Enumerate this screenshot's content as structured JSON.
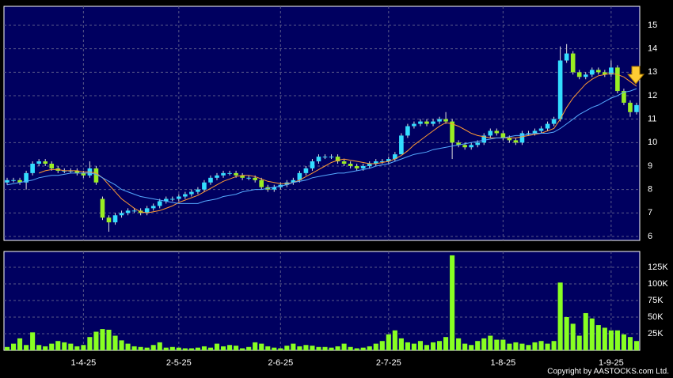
{
  "chart_data": [
    {
      "type": "candlestick",
      "open": [
        8.3,
        8.4,
        8.4,
        8.3,
        8.7,
        9.1,
        9.2,
        9.1,
        8.9,
        8.8,
        8.8,
        8.8,
        8.7,
        8.6,
        8.9,
        7.6,
        6.8,
        6.6,
        6.9,
        7.0,
        7.1,
        7.1,
        7.0,
        7.2,
        7.3,
        7.5,
        7.6,
        7.6,
        7.7,
        7.8,
        7.9,
        8.0,
        8.3,
        8.5,
        8.6,
        8.7,
        8.7,
        8.6,
        8.5,
        8.5,
        8.4,
        8.1,
        8.0,
        8.1,
        8.2,
        8.3,
        8.4,
        8.7,
        8.9,
        9.2,
        9.4,
        9.4,
        9.4,
        9.2,
        9.1,
        9.0,
        8.9,
        9.0,
        9.1,
        9.2,
        9.2,
        9.3,
        9.5,
        10.3,
        10.7,
        10.8,
        10.9,
        10.8,
        10.9,
        11.0,
        10.9,
        10.0,
        9.9,
        9.8,
        9.9,
        10.0,
        10.3,
        10.5,
        10.4,
        10.2,
        10.1,
        10.0,
        10.4,
        10.4,
        10.5,
        10.6,
        10.8,
        11.0,
        13.5,
        13.8,
        13.0,
        12.8,
        12.9,
        13.1,
        13.0,
        12.9,
        13.2,
        12.2,
        11.7,
        11.3
      ],
      "high": [
        8.5,
        8.5,
        8.5,
        8.8,
        9.2,
        9.3,
        9.3,
        9.2,
        9.0,
        8.9,
        8.9,
        8.9,
        8.8,
        9.2,
        9.0,
        7.7,
        6.9,
        7.0,
        7.1,
        7.2,
        7.2,
        7.2,
        7.3,
        7.4,
        7.6,
        7.7,
        7.7,
        7.8,
        7.9,
        8.0,
        8.1,
        8.4,
        8.6,
        8.7,
        8.8,
        8.8,
        8.8,
        8.7,
        8.6,
        8.6,
        8.5,
        8.2,
        8.2,
        8.3,
        8.4,
        8.5,
        8.8,
        9.0,
        9.3,
        9.5,
        9.5,
        9.5,
        9.5,
        9.3,
        9.2,
        9.1,
        9.1,
        9.2,
        9.3,
        9.3,
        9.4,
        9.6,
        10.4,
        10.8,
        10.9,
        11.0,
        11.0,
        11.0,
        11.1,
        11.3,
        11.0,
        10.1,
        10.0,
        10.0,
        10.1,
        10.4,
        10.6,
        10.6,
        10.5,
        10.3,
        10.2,
        10.5,
        10.5,
        10.6,
        10.7,
        10.9,
        11.1,
        14.1,
        14.2,
        13.9,
        13.1,
        13.0,
        13.2,
        13.2,
        13.1,
        13.5,
        13.3,
        12.3,
        11.8,
        11.7
      ],
      "low": [
        8.2,
        8.3,
        8.2,
        8.0,
        8.6,
        9.0,
        9.0,
        8.8,
        8.7,
        8.7,
        8.7,
        8.6,
        8.5,
        8.5,
        8.2,
        6.7,
        6.2,
        6.5,
        6.8,
        6.9,
        7.0,
        6.9,
        6.9,
        7.1,
        7.2,
        7.4,
        7.5,
        7.5,
        7.6,
        7.7,
        7.8,
        7.9,
        8.2,
        8.4,
        8.5,
        8.6,
        8.5,
        8.4,
        8.4,
        8.3,
        8.0,
        7.9,
        7.9,
        8.0,
        8.1,
        8.2,
        8.3,
        8.6,
        8.8,
        9.1,
        9.3,
        9.3,
        9.1,
        9.0,
        8.9,
        8.8,
        8.8,
        8.9,
        9.0,
        9.1,
        9.1,
        9.2,
        9.5,
        10.2,
        10.6,
        10.7,
        10.7,
        10.7,
        10.8,
        10.8,
        9.3,
        9.8,
        9.7,
        9.7,
        9.8,
        9.9,
        10.2,
        10.3,
        10.1,
        10.0,
        9.9,
        9.9,
        10.3,
        10.3,
        10.4,
        10.5,
        10.7,
        10.9,
        13.4,
        12.9,
        12.7,
        12.7,
        12.8,
        12.9,
        12.8,
        12.8,
        12.1,
        11.6,
        11.1,
        11.2
      ],
      "close": [
        8.4,
        8.4,
        8.3,
        8.7,
        9.1,
        9.2,
        9.1,
        8.9,
        8.8,
        8.8,
        8.8,
        8.7,
        8.6,
        8.9,
        8.3,
        6.8,
        6.6,
        6.9,
        7.0,
        7.1,
        7.1,
        7.0,
        7.2,
        7.3,
        7.5,
        7.6,
        7.6,
        7.7,
        7.8,
        7.9,
        8.0,
        8.3,
        8.5,
        8.6,
        8.7,
        8.7,
        8.6,
        8.5,
        8.5,
        8.4,
        8.1,
        8.0,
        8.1,
        8.2,
        8.3,
        8.4,
        8.7,
        8.9,
        9.2,
        9.4,
        9.4,
        9.4,
        9.2,
        9.1,
        9.0,
        8.9,
        9.0,
        9.1,
        9.2,
        9.2,
        9.3,
        9.5,
        10.3,
        10.7,
        10.8,
        10.9,
        10.8,
        10.9,
        11.0,
        10.9,
        10.0,
        9.9,
        9.8,
        9.9,
        10.0,
        10.3,
        10.5,
        10.4,
        10.2,
        10.1,
        10.0,
        10.4,
        10.4,
        10.5,
        10.6,
        10.8,
        11.0,
        13.5,
        13.8,
        13.0,
        12.8,
        12.9,
        13.1,
        13.0,
        12.9,
        13.2,
        12.2,
        11.7,
        11.3,
        11.6
      ],
      "up_color": "#33ddff",
      "down_color": "#99ee22",
      "series": [
        {
          "color": "#ff9933",
          "values": [
            null,
            null,
            null,
            null,
            null,
            8.7,
            8.8,
            8.85,
            8.85,
            8.8,
            8.8,
            8.8,
            8.75,
            8.75,
            8.7,
            8.5,
            8.2,
            7.9,
            7.6,
            7.4,
            7.2,
            7.05,
            7.0,
            7.05,
            7.1,
            7.2,
            7.3,
            7.45,
            7.55,
            7.65,
            7.75,
            7.9,
            8.05,
            8.2,
            8.35,
            8.45,
            8.55,
            8.6,
            8.6,
            8.55,
            8.45,
            8.35,
            8.3,
            8.25,
            8.25,
            8.3,
            8.4,
            8.55,
            8.7,
            8.85,
            9.0,
            9.15,
            9.25,
            9.3,
            9.25,
            9.2,
            9.15,
            9.1,
            9.1,
            9.15,
            9.2,
            9.3,
            9.45,
            9.65,
            9.9,
            10.1,
            10.3,
            10.5,
            10.7,
            10.85,
            10.8,
            10.7,
            10.55,
            10.4,
            10.3,
            10.25,
            10.2,
            10.2,
            10.2,
            10.2,
            10.2,
            10.25,
            10.3,
            10.35,
            10.4,
            10.5,
            10.6,
            11.0,
            11.5,
            11.9,
            12.2,
            12.5,
            12.7,
            12.85,
            12.9,
            12.95,
            12.9,
            12.8,
            12.6,
            12.4
          ]
        },
        {
          "color": "#55aaff",
          "values": [
            8.2,
            8.25,
            8.3,
            8.35,
            8.4,
            8.5,
            8.55,
            8.6,
            8.6,
            8.65,
            8.7,
            8.7,
            8.7,
            8.7,
            8.65,
            8.5,
            8.35,
            8.2,
            8.0,
            7.9,
            7.8,
            7.7,
            7.65,
            7.6,
            7.55,
            7.5,
            7.45,
            7.4,
            7.4,
            7.4,
            7.4,
            7.5,
            7.55,
            7.6,
            7.7,
            7.75,
            7.8,
            7.9,
            7.95,
            8.0,
            8.0,
            8.05,
            8.1,
            8.15,
            8.2,
            8.3,
            8.35,
            8.4,
            8.5,
            8.55,
            8.6,
            8.65,
            8.7,
            8.7,
            8.75,
            8.8,
            8.85,
            8.9,
            9.0,
            9.05,
            9.1,
            9.2,
            9.3,
            9.4,
            9.5,
            9.55,
            9.6,
            9.7,
            9.75,
            9.8,
            9.85,
            9.9,
            9.95,
            10.0,
            10.05,
            10.1,
            10.15,
            10.2,
            10.2,
            10.25,
            10.3,
            10.3,
            10.35,
            10.4,
            10.4,
            10.4,
            10.45,
            10.6,
            10.8,
            11.0,
            11.2,
            11.35,
            11.5,
            11.6,
            11.75,
            11.9,
            12.0,
            12.15,
            12.2,
            12.3
          ]
        }
      ],
      "ylim": [
        5.83,
        15.81
      ],
      "yticks": [
        6,
        7,
        8,
        9,
        10,
        11,
        12,
        13,
        14,
        15
      ],
      "grid": true
    },
    {
      "type": "bar",
      "color": "#88ff22",
      "categories": [
        null,
        null,
        null,
        null,
        null,
        null,
        null,
        null,
        null,
        null,
        null,
        null,
        "1-4-25",
        null,
        null,
        null,
        null,
        null,
        null,
        null,
        null,
        null,
        null,
        null,
        null,
        null,
        null,
        "2-5-25",
        null,
        null,
        null,
        null,
        null,
        null,
        null,
        null,
        null,
        null,
        null,
        null,
        null,
        null,
        null,
        "2-6-25",
        null,
        null,
        null,
        null,
        null,
        null,
        null,
        null,
        null,
        null,
        null,
        null,
        null,
        null,
        null,
        null,
        "2-7-25",
        null,
        null,
        null,
        null,
        null,
        null,
        null,
        null,
        null,
        null,
        null,
        null,
        null,
        null,
        null,
        null,
        null,
        "1-8-25",
        null,
        null,
        null,
        null,
        null,
        null,
        null,
        null,
        null,
        null,
        null,
        null,
        null,
        null,
        null,
        null,
        "1-9-25",
        null,
        null,
        null,
        null
      ],
      "values": [
        5000,
        10000,
        18000,
        8000,
        27000,
        8000,
        6000,
        10000,
        14000,
        12000,
        10000,
        6000,
        8000,
        20000,
        28000,
        32000,
        31000,
        22000,
        15000,
        10000,
        6000,
        5000,
        4000,
        8000,
        12000,
        4000,
        5000,
        4000,
        3000,
        3000,
        4000,
        6000,
        4000,
        10000,
        6000,
        8000,
        7000,
        3000,
        5000,
        12000,
        10000,
        6000,
        4000,
        3000,
        7000,
        10000,
        6000,
        8000,
        7000,
        5000,
        5000,
        4000,
        6000,
        10000,
        5000,
        3000,
        4000,
        6000,
        10000,
        14000,
        24000,
        30000,
        18000,
        12000,
        10000,
        14000,
        8000,
        12000,
        14000,
        20000,
        143000,
        18000,
        10000,
        8000,
        14000,
        18000,
        22000,
        16000,
        16000,
        10000,
        12000,
        10000,
        8000,
        12000,
        14000,
        10000,
        14000,
        102000,
        50000,
        40000,
        22000,
        56000,
        48000,
        38000,
        34000,
        30000,
        30000,
        24000,
        20000,
        14000
      ],
      "ylim": [
        0,
        148800
      ],
      "yticks": [
        {
          "value": 25000,
          "label": "25K"
        },
        {
          "value": 50000,
          "label": "50K"
        },
        {
          "value": 75000,
          "label": "75K"
        },
        {
          "value": 100000,
          "label": "100K"
        },
        {
          "value": 125000,
          "label": "125K"
        }
      ],
      "grid": true,
      "annotations": [
        "Copyright by AASTOCKS.com Ltd."
      ]
    }
  ]
}
